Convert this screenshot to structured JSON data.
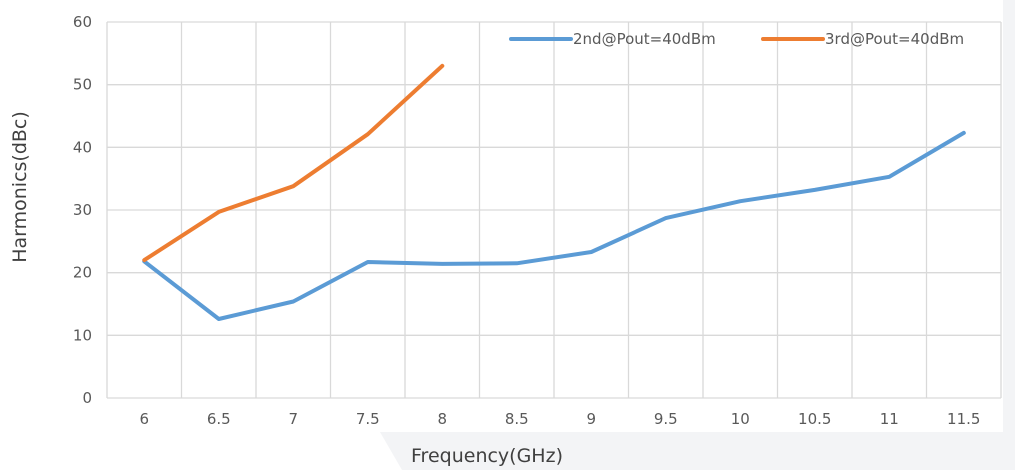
{
  "chart_data": {
    "type": "line",
    "xlabel": "Frequency(GHz)",
    "ylabel": "Harmonics(dBc)",
    "categories": [
      "6",
      "6.5",
      "7",
      "7.5",
      "8",
      "8.5",
      "9",
      "9.5",
      "10",
      "10.5",
      "11",
      "11.5"
    ],
    "ylim": [
      0,
      60
    ],
    "yticks": [
      "0",
      "10",
      "20",
      "30",
      "40",
      "50",
      "60"
    ],
    "grid": true,
    "legend_position": "top-right",
    "series": [
      {
        "name": "2nd@Pout=40dBm",
        "color": "#5b9bd5",
        "values": [
          21.8,
          12.6,
          15.4,
          21.7,
          21.4,
          21.5,
          23.3,
          28.7,
          31.4,
          33.2,
          35.3,
          42.3
        ]
      },
      {
        "name": "3rd@Pout=40dBm",
        "color": "#ed7d31",
        "values": [
          22.0,
          29.7,
          33.8,
          42.1,
          53.0,
          null,
          null,
          null,
          null,
          null,
          null,
          null
        ]
      }
    ]
  }
}
